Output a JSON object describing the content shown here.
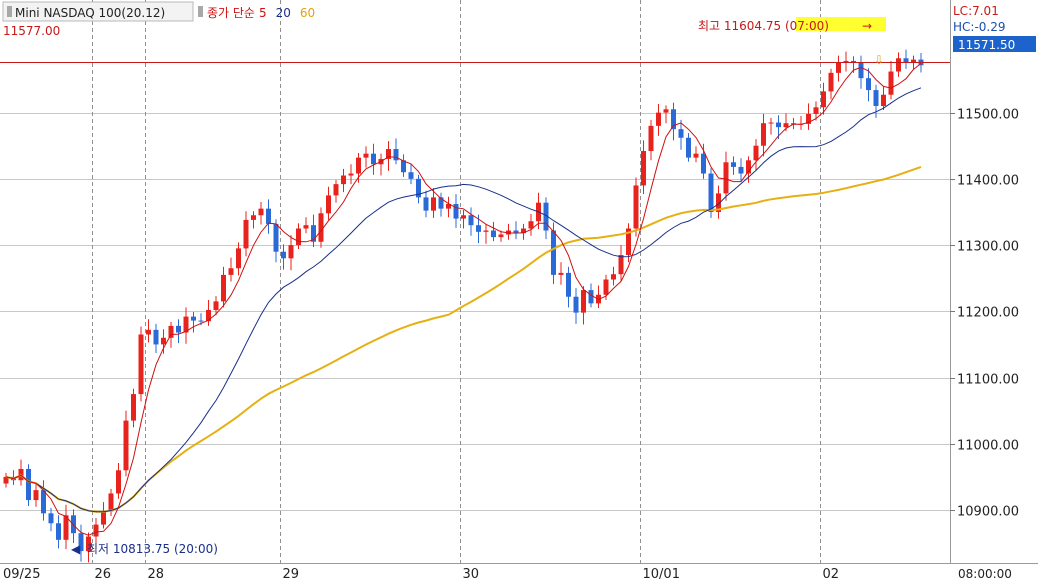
{
  "header": {
    "instrument": "Mini NASDAQ 100(20.12)",
    "indicator_label": "종가 단순",
    "ma_periods": [
      "5",
      "20",
      "60"
    ]
  },
  "current_line_label": "11577.00",
  "lc_label": "LC:7.01",
  "hc_label": "HC:-0.29",
  "price_badge": "11571.50",
  "high_annotation": "최고 11604.75 (07:00)",
  "low_annotation": "최저 10813.75 (20:00)",
  "time_axis_right": "08:00:00",
  "colors": {
    "up": "#e8221c",
    "down": "#2a6ad8",
    "ma5": "#d01010",
    "ma20": "#1a2f8a",
    "ma60": "#e6b012",
    "ref_line": "#c81818",
    "badge": "#1c64cc",
    "highlight": "#ffff30",
    "grid": "#c8c8c8",
    "vgrid": "#909090"
  },
  "chart_data": {
    "type": "candlestick",
    "ylim": [
      10820,
      11670
    ],
    "y_ticks": [
      10900,
      11000,
      11100,
      11200,
      11300,
      11400,
      11500
    ],
    "y_tick_labels": [
      "10900.00",
      "11000.00",
      "11100.00",
      "11200.00",
      "11300.00",
      "11400.00",
      "11500.00"
    ],
    "x_date_labels": [
      "09/25",
      "26",
      "28",
      "29",
      "30",
      "10/01",
      "02"
    ],
    "reference_price": 11577.0,
    "high": {
      "price": 11604.75,
      "time": "07:00"
    },
    "low": {
      "price": 10813.75,
      "time": "20:00"
    },
    "closes": [
      10950,
      10945,
      10962,
      10915,
      10930,
      10895,
      10880,
      10855,
      10892,
      10865,
      10838,
      10860,
      10878,
      10898,
      10925,
      10960,
      11035,
      11075,
      11165,
      11172,
      11150,
      11160,
      11178,
      11168,
      11192,
      11186,
      11185,
      11202,
      11215,
      11255,
      11265,
      11295,
      11338,
      11345,
      11355,
      11332,
      11290,
      11280,
      11300,
      11325,
      11330,
      11305,
      11348,
      11375,
      11392,
      11405,
      11408,
      11432,
      11438,
      11422,
      11430,
      11445,
      11428,
      11410,
      11400,
      11372,
      11352,
      11372,
      11355,
      11362,
      11340,
      11345,
      11330,
      11320,
      11322,
      11312,
      11316,
      11322,
      11318,
      11325,
      11336,
      11364,
      11322,
      11255,
      11258,
      11222,
      11198,
      11232,
      11212,
      11225,
      11248,
      11256,
      11285,
      11325,
      11390,
      11442,
      11480,
      11500,
      11505,
      11475,
      11462,
      11432,
      11438,
      11408,
      11350,
      11378,
      11425,
      11418,
      11408,
      11428,
      11450,
      11484,
      11485,
      11478,
      11484,
      11482,
      11483,
      11498,
      11508,
      11532,
      11560,
      11576,
      11578,
      11575,
      11552,
      11534,
      11510,
      11527,
      11562,
      11582,
      11575,
      11580,
      11571.5
    ]
  }
}
